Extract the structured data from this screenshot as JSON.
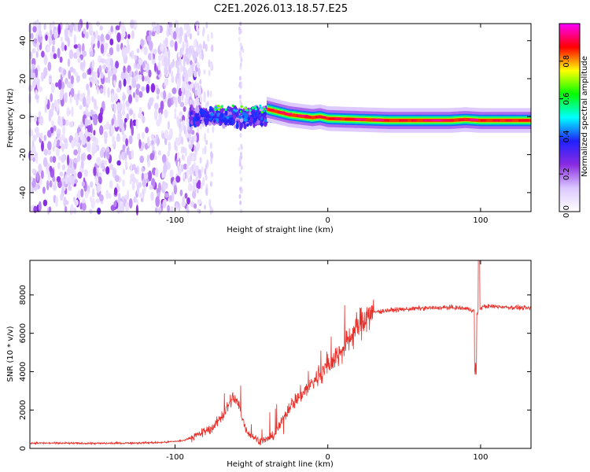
{
  "title": "C2E1.2026.013.18.57.E25",
  "chart_data": [
    {
      "type": "heatmap",
      "name": "spectrogram",
      "xlabel": "Height of straight line (km)",
      "ylabel": "Frequency (Hz)",
      "xlim": [
        -195,
        133
      ],
      "ylim": [
        -50,
        49
      ],
      "x_ticks": [
        -100,
        0,
        100
      ],
      "y_ticks": [
        -40,
        -20,
        0,
        20,
        40
      ],
      "x_tick_labels": [
        "-100",
        "0",
        "100"
      ],
      "y_tick_labels": [
        "-40",
        "-20",
        "0",
        "20",
        "40"
      ],
      "colorbar": {
        "label": "Normalized spectral amplitude",
        "range": [
          0,
          1
        ],
        "ticks": [
          0.0,
          0.2,
          0.4,
          0.6,
          0.8
        ],
        "tick_labels": [
          "0.0",
          "0.2",
          "0.4",
          "0.6",
          "0.8"
        ],
        "colors": [
          "#ffffff",
          "#dcc8ff",
          "#8a2be2",
          "#2020ff",
          "#00ffff",
          "#00ff00",
          "#ffff00",
          "#ff0000",
          "#ff00ff"
        ]
      },
      "ridge": {
        "description_values_x": [
          -40,
          -35,
          -30,
          -25,
          -20,
          -15,
          -10,
          -5,
          0,
          20,
          40,
          60,
          80,
          90,
          100,
          133
        ],
        "frequency_hz": [
          4,
          3,
          2,
          1,
          0.5,
          0,
          -0.5,
          0,
          -1,
          -1.5,
          -2,
          -2,
          -2,
          -1.5,
          -2,
          -2
        ]
      }
    },
    {
      "type": "line",
      "name": "snr",
      "xlabel": "Height of straight line (km)",
      "ylabel": "SNR (10 * v/v)",
      "xlim": [
        -195,
        133
      ],
      "ylim": [
        0,
        9800
      ],
      "x_ticks": [
        -100,
        0,
        100
      ],
      "y_ticks": [
        0,
        2000,
        4000,
        6000,
        8000
      ],
      "x_tick_labels": [
        "-100",
        "0",
        "100"
      ],
      "y_tick_labels": [
        "0",
        "2000",
        "4000",
        "6000",
        "8000"
      ],
      "color": "#e8302a",
      "keypoints_x": [
        -195,
        -150,
        -110,
        -95,
        -85,
        -75,
        -68,
        -62,
        -58,
        -55,
        -52,
        -45,
        -40,
        -35,
        -30,
        -25,
        -15,
        -8,
        0,
        10,
        18,
        25,
        30,
        40,
        60,
        80,
        90,
        95,
        98,
        100,
        102,
        110,
        120,
        133
      ],
      "keypoints_y": [
        280,
        260,
        300,
        400,
        700,
        1100,
        1800,
        2700,
        2200,
        1300,
        800,
        400,
        450,
        700,
        1400,
        2200,
        3000,
        3600,
        4300,
        5200,
        6200,
        6900,
        7100,
        7200,
        7300,
        7350,
        7300,
        7200,
        7000,
        7300,
        7400,
        7400,
        7350,
        7300
      ]
    }
  ]
}
